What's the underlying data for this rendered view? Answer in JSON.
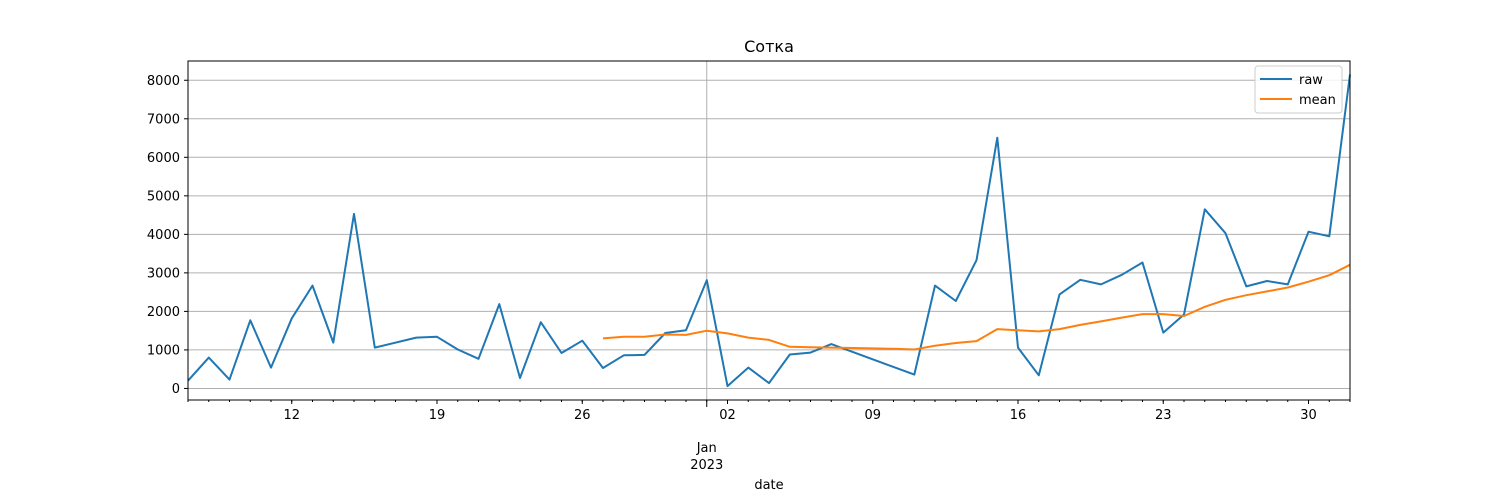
{
  "chart_data": {
    "type": "line",
    "title": "Сотка",
    "xlabel": "date",
    "ylabel": "",
    "ylim": [
      -300,
      8500
    ],
    "xlim": [
      "2022-12-07",
      "2023-01-31"
    ],
    "yticks": [
      0,
      1000,
      2000,
      3000,
      4000,
      5000,
      6000,
      7000,
      8000
    ],
    "xticks": [
      {
        "date": "2022-12-12",
        "label": "12"
      },
      {
        "date": "2022-12-19",
        "label": "19"
      },
      {
        "date": "2022-12-26",
        "label": "26"
      },
      {
        "date": "2023-01-02",
        "label": "02"
      },
      {
        "date": "2023-01-09",
        "label": "09"
      },
      {
        "date": "2023-01-16",
        "label": "16"
      },
      {
        "date": "2023-01-23",
        "label": "23"
      },
      {
        "date": "2023-01-30",
        "label": "30"
      }
    ],
    "x_secondary_label": {
      "date": "2023-01-01",
      "month": "Jan",
      "year": "2023"
    },
    "major_gridline": "2023-01-01",
    "grid": true,
    "legend_position": "top-right",
    "series": [
      {
        "name": "raw",
        "color": "#1f77b4",
        "points": [
          [
            "2022-12-07",
            200
          ],
          [
            "2022-12-08",
            800
          ],
          [
            "2022-12-09",
            230
          ],
          [
            "2022-12-10",
            1770
          ],
          [
            "2022-12-11",
            540
          ],
          [
            "2022-12-12",
            1820
          ],
          [
            "2022-12-13",
            2670
          ],
          [
            "2022-12-14",
            1190
          ],
          [
            "2022-12-15",
            4530
          ],
          [
            "2022-12-16",
            1060
          ],
          [
            "2022-12-18",
            1320
          ],
          [
            "2022-12-19",
            1340
          ],
          [
            "2022-12-20",
            1010
          ],
          [
            "2022-12-21",
            770
          ],
          [
            "2022-12-22",
            2190
          ],
          [
            "2022-12-23",
            270
          ],
          [
            "2022-12-24",
            1720
          ],
          [
            "2022-12-25",
            920
          ],
          [
            "2022-12-26",
            1240
          ],
          [
            "2022-12-27",
            530
          ],
          [
            "2022-12-28",
            860
          ],
          [
            "2022-12-29",
            870
          ],
          [
            "2022-12-30",
            1440
          ],
          [
            "2022-12-31",
            1510
          ],
          [
            "2023-01-01",
            2810
          ],
          [
            "2023-01-02",
            60
          ],
          [
            "2023-01-03",
            540
          ],
          [
            "2023-01-04",
            140
          ],
          [
            "2023-01-05",
            880
          ],
          [
            "2023-01-06",
            930
          ],
          [
            "2023-01-07",
            1150
          ],
          [
            "2023-01-11",
            360
          ],
          [
            "2023-01-12",
            2670
          ],
          [
            "2023-01-13",
            2270
          ],
          [
            "2023-01-14",
            3330
          ],
          [
            "2023-01-15",
            6510
          ],
          [
            "2023-01-16",
            1060
          ],
          [
            "2023-01-17",
            340
          ],
          [
            "2023-01-18",
            2440
          ],
          [
            "2023-01-19",
            2820
          ],
          [
            "2023-01-20",
            2700
          ],
          [
            "2023-01-21",
            2950
          ],
          [
            "2023-01-22",
            3270
          ],
          [
            "2023-01-23",
            1450
          ],
          [
            "2023-01-24",
            1920
          ],
          [
            "2023-01-25",
            4650
          ],
          [
            "2023-01-26",
            4030
          ],
          [
            "2023-01-27",
            2650
          ],
          [
            "2023-01-28",
            2790
          ],
          [
            "2023-01-29",
            2700
          ],
          [
            "2023-01-30",
            4070
          ],
          [
            "2023-01-31",
            3950
          ],
          [
            "2023-02-01",
            8150
          ]
        ]
      },
      {
        "name": "mean",
        "color": "#ff7f0e",
        "points": [
          [
            "2022-12-27",
            1300
          ],
          [
            "2022-12-28",
            1340
          ],
          [
            "2022-12-29",
            1340
          ],
          [
            "2022-12-30",
            1400
          ],
          [
            "2022-12-31",
            1390
          ],
          [
            "2023-01-01",
            1500
          ],
          [
            "2023-01-02",
            1430
          ],
          [
            "2023-01-03",
            1320
          ],
          [
            "2023-01-04",
            1260
          ],
          [
            "2023-01-05",
            1080
          ],
          [
            "2023-01-06",
            1070
          ],
          [
            "2023-01-07",
            1060
          ],
          [
            "2023-01-08",
            1050
          ],
          [
            "2023-01-09",
            1040
          ],
          [
            "2023-01-10",
            1030
          ],
          [
            "2023-01-11",
            1010
          ],
          [
            "2023-01-12",
            1110
          ],
          [
            "2023-01-13",
            1180
          ],
          [
            "2023-01-14",
            1230
          ],
          [
            "2023-01-15",
            1540
          ],
          [
            "2023-01-16",
            1510
          ],
          [
            "2023-01-17",
            1480
          ],
          [
            "2023-01-18",
            1540
          ],
          [
            "2023-01-19",
            1650
          ],
          [
            "2023-01-20",
            1740
          ],
          [
            "2023-01-21",
            1840
          ],
          [
            "2023-01-22",
            1930
          ],
          [
            "2023-01-23",
            1930
          ],
          [
            "2023-01-24",
            1880
          ],
          [
            "2023-01-25",
            2120
          ],
          [
            "2023-01-26",
            2300
          ],
          [
            "2023-01-27",
            2420
          ],
          [
            "2023-01-28",
            2520
          ],
          [
            "2023-01-29",
            2620
          ],
          [
            "2023-01-30",
            2770
          ],
          [
            "2023-01-31",
            2940
          ],
          [
            "2023-02-01",
            3210
          ]
        ]
      }
    ]
  }
}
